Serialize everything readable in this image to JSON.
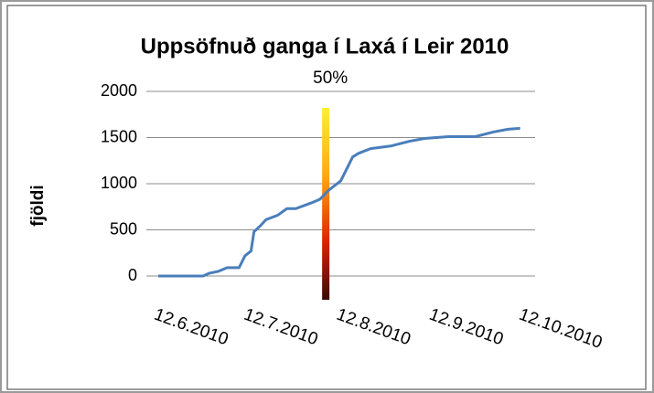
{
  "chart_data": {
    "type": "line",
    "title": "Uppsöfnuð ganga í Laxá í Leir 2010",
    "y_label": "fjöldi",
    "x": [
      "12.6.2010",
      "27.6.2010",
      "29.6.2010",
      "2.7.2010",
      "5.7.2010",
      "9.7.2010",
      "11.7.2010",
      "13.7.2010",
      "14.7.2010",
      "16.7.2010",
      "18.7.2010",
      "22.7.2010",
      "25.7.2010",
      "28.7.2010",
      "2.8.2010",
      "5.8.2010",
      "8.8.2010",
      "12.8.2010",
      "16.8.2010",
      "18.8.2010",
      "22.8.2010",
      "29.8.2010",
      "4.9.2010",
      "9.9.2010",
      "17.9.2010",
      "26.9.2010",
      "2.10.2010",
      "7.10.2010",
      "11.10.2010"
    ],
    "series": [
      {
        "name": "fjöldi",
        "color": "#4a7ebb",
        "values": [
          0,
          0,
          30,
          50,
          90,
          90,
          220,
          270,
          480,
          540,
          610,
          660,
          730,
          730,
          790,
          830,
          930,
          1030,
          1290,
          1330,
          1380,
          1410,
          1460,
          1490,
          1510,
          1510,
          1560,
          1590,
          1600
        ]
      }
    ],
    "xlim": [
      "8.6.2010",
      "16.10.2010"
    ],
    "xticks": [
      "12.6.2010",
      "12.7.2010",
      "12.8.2010",
      "12.9.2010",
      "12.10.2010"
    ],
    "ylim": [
      0,
      2000
    ],
    "yticks": [
      0,
      500,
      1000,
      1500,
      2000
    ],
    "grid": true,
    "annotations": [
      {
        "text": "50%",
        "x": "7.8.2010"
      }
    ]
  }
}
